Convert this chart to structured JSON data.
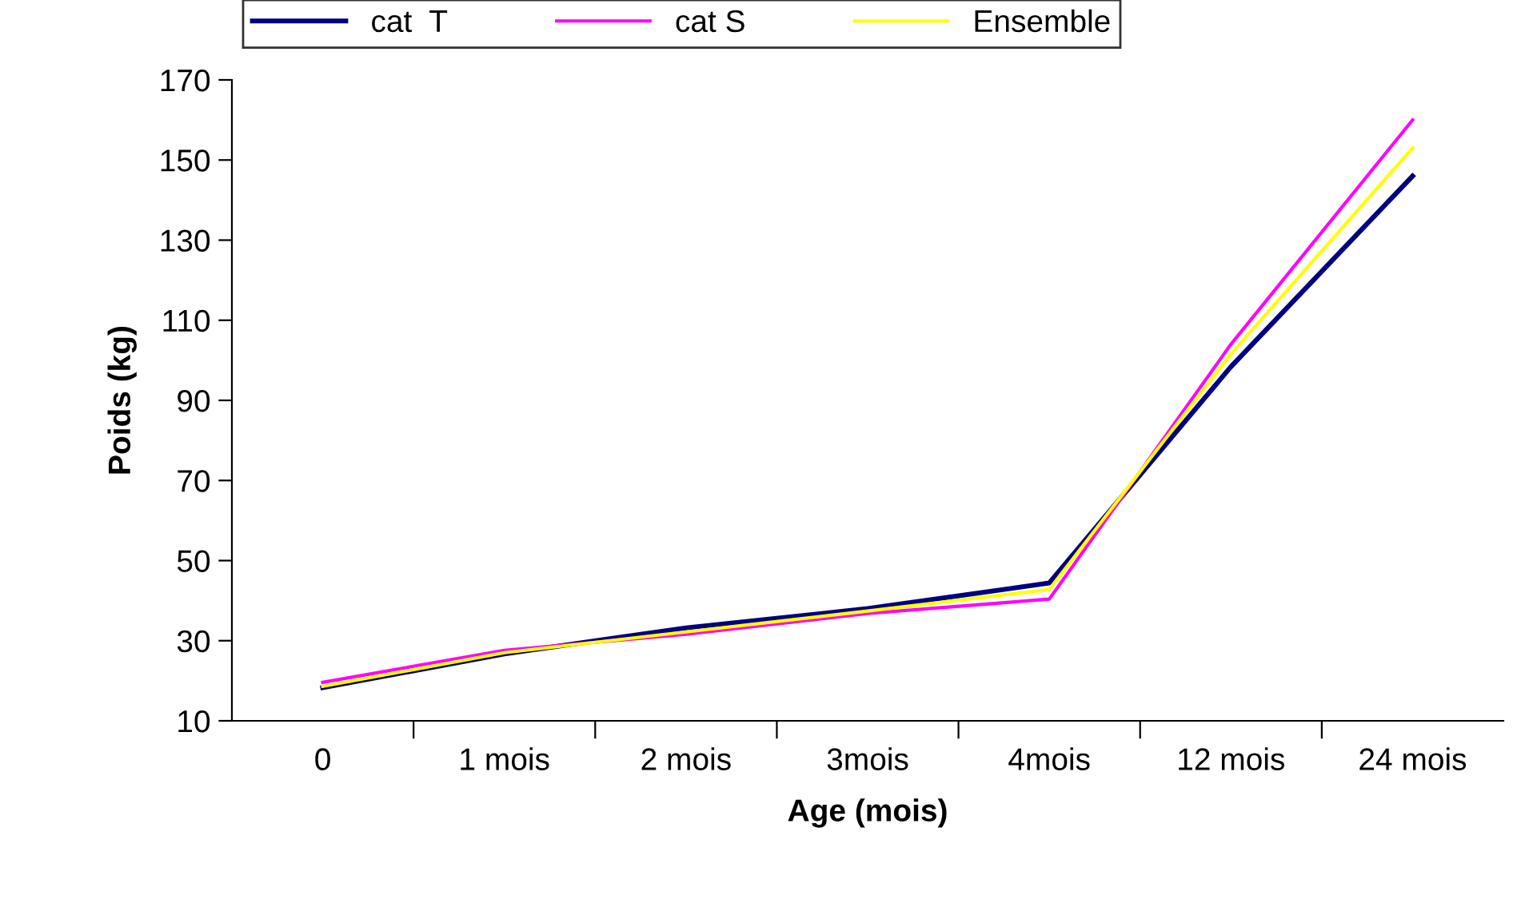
{
  "chart_data": {
    "type": "line",
    "xlabel": "Age (mois)",
    "ylabel": "Poids (kg)",
    "categories": [
      "0",
      "1 mois",
      "2 mois",
      "3mois",
      "4mois",
      "12 mois",
      "24 mois"
    ],
    "series": [
      {
        "name": "cat  T",
        "color": "#000080",
        "values": [
          18.3,
          26.7,
          33.2,
          38,
          44.4,
          98.4,
          146
        ]
      },
      {
        "name": "cat S",
        "color": "#ff00ff",
        "values": [
          19.6,
          27.6,
          31.6,
          36.8,
          40.4,
          104,
          160
        ]
      },
      {
        "name": "Ensemble",
        "color": "#ffff00",
        "values": [
          18.6,
          27,
          32.2,
          37.4,
          42.8,
          101.6,
          153
        ]
      }
    ],
    "ylim": [
      10,
      170
    ],
    "yticks": [
      10,
      30,
      50,
      70,
      90,
      110,
      130,
      150,
      170
    ],
    "grid": false,
    "legend": "top",
    "marker": "none",
    "line_style": "solid"
  }
}
